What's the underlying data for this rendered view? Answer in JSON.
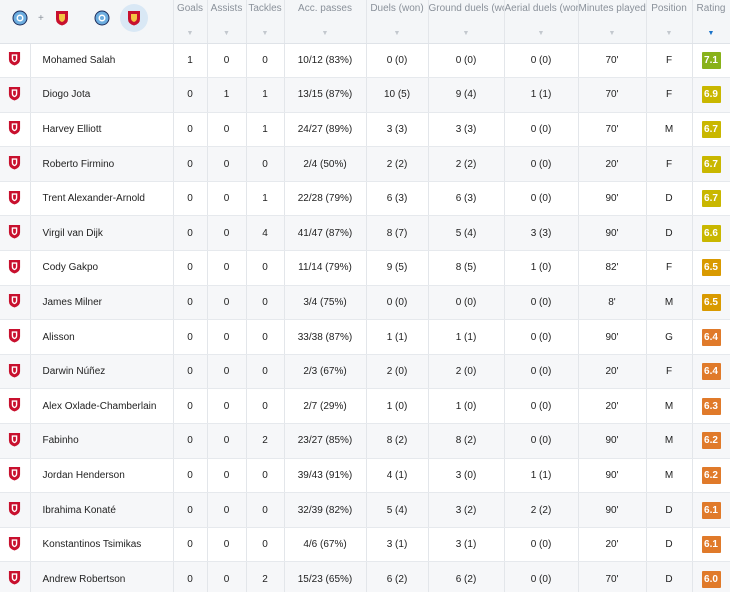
{
  "colors": {
    "liverpool_red": "#c8102e",
    "mancity_blue": "#6caddf",
    "rating_green": "#88b21a",
    "rating_yellow": "#c9b700",
    "rating_amber": "#d99a00",
    "rating_orange": "#e07a2a",
    "sort_active": "#1a73c9"
  },
  "header": {
    "teams_filter": [
      "mancity-liverpool-icon",
      "liverpool-icon",
      "mancity-icon",
      "liverpool-selected-icon"
    ],
    "plus_sign": "+",
    "columns": [
      {
        "key": "goals",
        "label": "Goals",
        "sort": "▼"
      },
      {
        "key": "assists",
        "label": "Assists",
        "sort": "▼"
      },
      {
        "key": "tackles",
        "label": "Tackles",
        "sort": "▼"
      },
      {
        "key": "acc_passes",
        "label": "Acc. passes",
        "sort": "▼"
      },
      {
        "key": "duels",
        "label": "Duels (won)",
        "sort": "▼"
      },
      {
        "key": "ground_duels",
        "label": "Ground duels (won)",
        "sort": "▼"
      },
      {
        "key": "aerial_duels",
        "label": "Aerial duels (won)",
        "sort": "▼"
      },
      {
        "key": "minutes",
        "label": "Minutes played",
        "sort": "▼"
      },
      {
        "key": "position",
        "label": "Position",
        "sort": "▼"
      },
      {
        "key": "rating",
        "label": "Rating",
        "sort": "▼"
      }
    ]
  },
  "players": [
    {
      "name": "Mohamed Salah",
      "goals": "1",
      "assists": "0",
      "tackles": "0",
      "acc_passes": "10/12 (83%)",
      "duels": "0 (0)",
      "ground_duels": "0 (0)",
      "aerial_duels": "0 (0)",
      "minutes": "70'",
      "position": "F",
      "rating": "7.1",
      "rating_color": "#88b21a"
    },
    {
      "name": "Diogo Jota",
      "goals": "0",
      "assists": "1",
      "tackles": "1",
      "acc_passes": "13/15 (87%)",
      "duels": "10 (5)",
      "ground_duels": "9 (4)",
      "aerial_duels": "1 (1)",
      "minutes": "70'",
      "position": "F",
      "rating": "6.9",
      "rating_color": "#c9b700"
    },
    {
      "name": "Harvey Elliott",
      "goals": "0",
      "assists": "0",
      "tackles": "1",
      "acc_passes": "24/27 (89%)",
      "duels": "3 (3)",
      "ground_duels": "3 (3)",
      "aerial_duels": "0 (0)",
      "minutes": "70'",
      "position": "M",
      "rating": "6.7",
      "rating_color": "#c9b700"
    },
    {
      "name": "Roberto Firmino",
      "goals": "0",
      "assists": "0",
      "tackles": "0",
      "acc_passes": "2/4 (50%)",
      "duels": "2 (2)",
      "ground_duels": "2 (2)",
      "aerial_duels": "0 (0)",
      "minutes": "20'",
      "position": "F",
      "rating": "6.7",
      "rating_color": "#c9b700"
    },
    {
      "name": "Trent Alexander-Arnold",
      "goals": "0",
      "assists": "0",
      "tackles": "1",
      "acc_passes": "22/28 (79%)",
      "duels": "6 (3)",
      "ground_duels": "6 (3)",
      "aerial_duels": "0 (0)",
      "minutes": "90'",
      "position": "D",
      "rating": "6.7",
      "rating_color": "#c9b700"
    },
    {
      "name": "Virgil van Dijk",
      "goals": "0",
      "assists": "0",
      "tackles": "4",
      "acc_passes": "41/47 (87%)",
      "duels": "8 (7)",
      "ground_duels": "5 (4)",
      "aerial_duels": "3 (3)",
      "minutes": "90'",
      "position": "D",
      "rating": "6.6",
      "rating_color": "#c9b700"
    },
    {
      "name": "Cody Gakpo",
      "goals": "0",
      "assists": "0",
      "tackles": "0",
      "acc_passes": "11/14 (79%)",
      "duels": "9 (5)",
      "ground_duels": "8 (5)",
      "aerial_duels": "1 (0)",
      "minutes": "82'",
      "position": "F",
      "rating": "6.5",
      "rating_color": "#d99a00"
    },
    {
      "name": "James Milner",
      "goals": "0",
      "assists": "0",
      "tackles": "0",
      "acc_passes": "3/4 (75%)",
      "duels": "0 (0)",
      "ground_duels": "0 (0)",
      "aerial_duels": "0 (0)",
      "minutes": "8'",
      "position": "M",
      "rating": "6.5",
      "rating_color": "#d99a00"
    },
    {
      "name": "Alisson",
      "goals": "0",
      "assists": "0",
      "tackles": "0",
      "acc_passes": "33/38 (87%)",
      "duels": "1 (1)",
      "ground_duels": "1 (1)",
      "aerial_duels": "0 (0)",
      "minutes": "90'",
      "position": "G",
      "rating": "6.4",
      "rating_color": "#e07a2a"
    },
    {
      "name": "Darwin Núñez",
      "goals": "0",
      "assists": "0",
      "tackles": "0",
      "acc_passes": "2/3 (67%)",
      "duels": "2 (0)",
      "ground_duels": "2 (0)",
      "aerial_duels": "0 (0)",
      "minutes": "20'",
      "position": "F",
      "rating": "6.4",
      "rating_color": "#e07a2a"
    },
    {
      "name": "Alex Oxlade-Chamberlain",
      "goals": "0",
      "assists": "0",
      "tackles": "0",
      "acc_passes": "2/7 (29%)",
      "duels": "1 (0)",
      "ground_duels": "1 (0)",
      "aerial_duels": "0 (0)",
      "minutes": "20'",
      "position": "M",
      "rating": "6.3",
      "rating_color": "#e07a2a"
    },
    {
      "name": "Fabinho",
      "goals": "0",
      "assists": "0",
      "tackles": "2",
      "acc_passes": "23/27 (85%)",
      "duels": "8 (2)",
      "ground_duels": "8 (2)",
      "aerial_duels": "0 (0)",
      "minutes": "90'",
      "position": "M",
      "rating": "6.2",
      "rating_color": "#e07a2a"
    },
    {
      "name": "Jordan Henderson",
      "goals": "0",
      "assists": "0",
      "tackles": "0",
      "acc_passes": "39/43 (91%)",
      "duels": "4 (1)",
      "ground_duels": "3 (0)",
      "aerial_duels": "1 (1)",
      "minutes": "90'",
      "position": "M",
      "rating": "6.2",
      "rating_color": "#e07a2a"
    },
    {
      "name": "Ibrahima Konaté",
      "goals": "0",
      "assists": "0",
      "tackles": "0",
      "acc_passes": "32/39 (82%)",
      "duels": "5 (4)",
      "ground_duels": "3 (2)",
      "aerial_duels": "2 (2)",
      "minutes": "90'",
      "position": "D",
      "rating": "6.1",
      "rating_color": "#e07a2a"
    },
    {
      "name": "Konstantinos Tsimikas",
      "goals": "0",
      "assists": "0",
      "tackles": "0",
      "acc_passes": "4/6 (67%)",
      "duels": "3 (1)",
      "ground_duels": "3 (1)",
      "aerial_duels": "0 (0)",
      "minutes": "20'",
      "position": "D",
      "rating": "6.1",
      "rating_color": "#e07a2a"
    },
    {
      "name": "Andrew Robertson",
      "goals": "0",
      "assists": "0",
      "tackles": "2",
      "acc_passes": "15/23 (65%)",
      "duels": "6 (2)",
      "ground_duels": "6 (2)",
      "aerial_duels": "0 (0)",
      "minutes": "70'",
      "position": "D",
      "rating": "6.0",
      "rating_color": "#e07a2a"
    }
  ]
}
